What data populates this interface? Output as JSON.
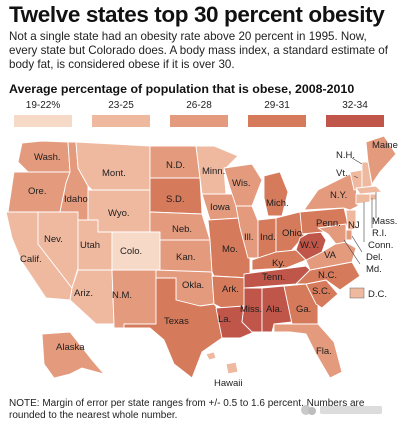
{
  "title": "Twelve states top 30 percent obesity",
  "description": "Not a single state had an obesity rate above 20 percent in 1995. Now, every state but Colorado does. A body mass index, a standard estimate of body fat, is considered obese if it is over 30.",
  "subtitle": "Average percentage of population that is obese, 2008-2010",
  "legend": [
    {
      "label": "19-22%",
      "color": "#f7d9c7"
    },
    {
      "label": "23-25",
      "color": "#efb9a0"
    },
    {
      "label": "26-28",
      "color": "#e49a7d"
    },
    {
      "label": "29-31",
      "color": "#d67a5c"
    },
    {
      "label": "32-34",
      "color": "#c0564a"
    }
  ],
  "states": [
    {
      "abbr": "Wash.",
      "bin": 2
    },
    {
      "abbr": "Ore.",
      "bin": 2
    },
    {
      "abbr": "Calif.",
      "bin": 1
    },
    {
      "abbr": "Idaho",
      "bin": 2
    },
    {
      "abbr": "Nev.",
      "bin": 1
    },
    {
      "abbr": "Utah",
      "bin": 1
    },
    {
      "abbr": "Ariz.",
      "bin": 1
    },
    {
      "abbr": "Mont.",
      "bin": 1
    },
    {
      "abbr": "Wyo.",
      "bin": 1
    },
    {
      "abbr": "Colo.",
      "bin": 0
    },
    {
      "abbr": "N.M.",
      "bin": 2
    },
    {
      "abbr": "N.D.",
      "bin": 2
    },
    {
      "abbr": "S.D.",
      "bin": 3
    },
    {
      "abbr": "Neb.",
      "bin": 2
    },
    {
      "abbr": "Kan.",
      "bin": 2
    },
    {
      "abbr": "Okla.",
      "bin": 2
    },
    {
      "abbr": "Texas",
      "bin": 3
    },
    {
      "abbr": "Minn.",
      "bin": 1
    },
    {
      "abbr": "Iowa",
      "bin": 2
    },
    {
      "abbr": "Mo.",
      "bin": 3
    },
    {
      "abbr": "Ark.",
      "bin": 3
    },
    {
      "abbr": "La.",
      "bin": 4
    },
    {
      "abbr": "Wis.",
      "bin": 2
    },
    {
      "abbr": "Ill.",
      "bin": 2
    },
    {
      "abbr": "Mich.",
      "bin": 3
    },
    {
      "abbr": "Ind.",
      "bin": 3
    },
    {
      "abbr": "Ohio",
      "bin": 3
    },
    {
      "abbr": "Ky.",
      "bin": 3
    },
    {
      "abbr": "Tenn.",
      "bin": 4
    },
    {
      "abbr": "Miss.",
      "bin": 4
    },
    {
      "abbr": "Ala.",
      "bin": 4
    },
    {
      "abbr": "Ga.",
      "bin": 3
    },
    {
      "abbr": "Fla.",
      "bin": 2
    },
    {
      "abbr": "S.C.",
      "bin": 3
    },
    {
      "abbr": "N.C.",
      "bin": 3
    },
    {
      "abbr": "VA",
      "bin": 2
    },
    {
      "abbr": "W.V.",
      "bin": 4
    },
    {
      "abbr": "Penn.",
      "bin": 3
    },
    {
      "abbr": "N.Y.",
      "bin": 2
    },
    {
      "abbr": "Vt.",
      "bin": 1
    },
    {
      "abbr": "N.H.",
      "bin": 1
    },
    {
      "abbr": "Maine",
      "bin": 2
    },
    {
      "abbr": "Mass.",
      "bin": 1
    },
    {
      "abbr": "R.I.",
      "bin": 1
    },
    {
      "abbr": "Conn.",
      "bin": 1
    },
    {
      "abbr": "NJ",
      "bin": 1
    },
    {
      "abbr": "Del.",
      "bin": 2
    },
    {
      "abbr": "Md.",
      "bin": 2
    },
    {
      "abbr": "D.C.",
      "bin": 1
    },
    {
      "abbr": "Alaska",
      "bin": 2
    },
    {
      "abbr": "Hawaii",
      "bin": 1
    }
  ],
  "note": "NOTE: Margin of error per state ranges from +/- 0.5 to 1.6 percent. Numbers are rounded to the nearest whole number."
}
